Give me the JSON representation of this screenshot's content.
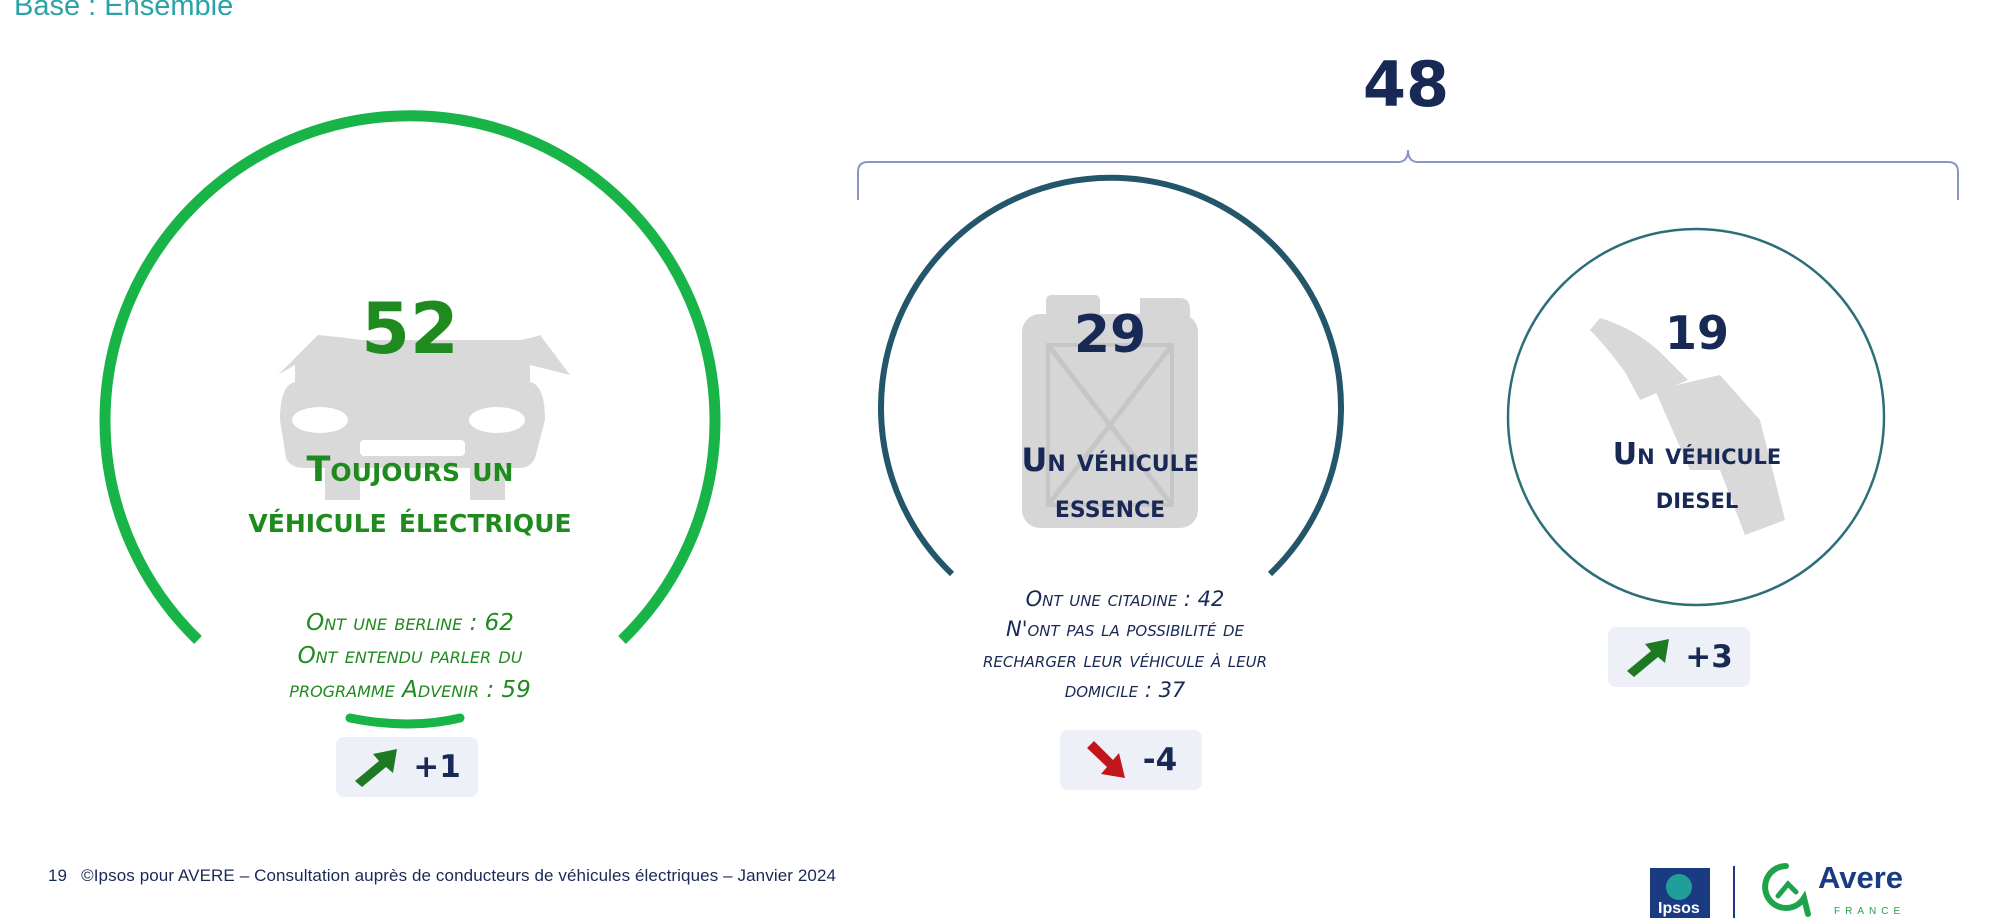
{
  "header": {
    "base_label": "Base : Ensemble"
  },
  "total": {
    "value": "48"
  },
  "items": [
    {
      "value": "52",
      "title_line1": "Toujours un",
      "title_line2": "véhicule électrique",
      "sub_lines": [
        "Ont une berline : 62",
        "Ont entendu parler du",
        "programme Advenir : 59"
      ],
      "change": "+1",
      "direction": "up",
      "color": "#1f8a1e",
      "icon": "car-icon"
    },
    {
      "value": "29",
      "title_line1": "Un véhicule",
      "title_line2": "essence",
      "sub_lines": [
        "Ont une citadine : 42",
        "N'ont pas la possibilité de",
        "recharger leur véhicule à leur",
        "domicile : 37"
      ],
      "change": "-4",
      "direction": "down",
      "color": "#23566a",
      "icon": "jerrycan-icon"
    },
    {
      "value": "19",
      "title_line1": "Un véhicule",
      "title_line2": "diesel",
      "sub_lines": [],
      "change": "+3",
      "direction": "up",
      "color": "#2d6f78",
      "icon": "fuel-nozzle-icon"
    }
  ],
  "colors": {
    "up_arrow": "#1e7a22",
    "down_arrow": "#c0161c",
    "dark_navy": "#182956"
  },
  "footer": {
    "page_number": "19",
    "credit": "©Ipsos pour AVERE – Consultation auprès de conducteurs de véhicules électriques – Janvier 2024"
  },
  "logos": {
    "ipsos": "Ipsos",
    "avere": "Avere",
    "avere_sub": "FRANCE"
  }
}
